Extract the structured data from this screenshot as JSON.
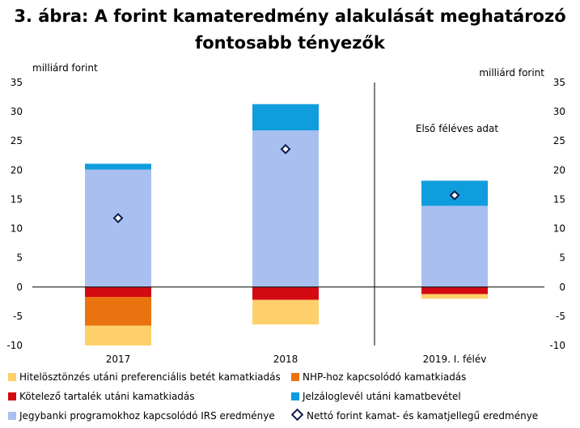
{
  "title": {
    "line1": "3. ábra: A forint kamateredmény alakulását meghatározó",
    "line2": "fontosabb tényezők"
  },
  "chart_data": {
    "type": "bar",
    "stacked": true,
    "categories": [
      "2017",
      "2018",
      "2019. I. félév"
    ],
    "ylabel_left": "milliárd forint",
    "ylabel_right": "milliárd forint",
    "ylim": [
      -10,
      35
    ],
    "yticks": [
      -10,
      -5,
      0,
      5,
      10,
      15,
      20,
      25,
      30,
      35
    ],
    "annotation": "Első féléves adat",
    "series": [
      {
        "name": "Kötelező tartalék utáni kamatkiadás",
        "color": "#d40a12",
        "values": [
          -1.7,
          -2.2,
          -1.2
        ]
      },
      {
        "name": "NHP-hoz kapcsolódó kamatkiadás",
        "color": "#e8730f",
        "values": [
          -4.9,
          0,
          0
        ]
      },
      {
        "name": "Hitelösztönzés utáni preferenciális betét kamatkiadás",
        "color": "#fdd06b",
        "values": [
          -3.4,
          -4.2,
          -0.8
        ]
      },
      {
        "name": "Jegybanki programokhoz kapcsolódó IRS eredménye",
        "color": "#a8bfef",
        "values": [
          20.1,
          26.8,
          13.9
        ]
      },
      {
        "name": "Jelzáloglevél utáni kamatbevétel",
        "color": "#109ddd",
        "values": [
          1.0,
          4.5,
          4.3
        ]
      }
    ],
    "net_series": {
      "name": "Nettó forint kamat- és kamatjellegű eredménye",
      "values": [
        11.8,
        23.6,
        15.7
      ]
    },
    "legend": [
      {
        "name": "Hitelösztönzés utáni preferenciális betét kamatkiadás",
        "color": "#fdd06b",
        "marker": "square"
      },
      {
        "name": "NHP-hoz kapcsolódó kamatkiadás",
        "color": "#e8730f",
        "marker": "square"
      },
      {
        "name": "Kötelező tartalék utáni kamatkiadás",
        "color": "#d40a12",
        "marker": "square"
      },
      {
        "name": "Jelzáloglevél utáni kamatbevétel",
        "color": "#109ddd",
        "marker": "square"
      },
      {
        "name": "Jegybanki programokhoz kapcsolódó IRS eredménye",
        "color": "#a8bfef",
        "marker": "square"
      },
      {
        "name": "Nettó forint kamat- és kamatjellegű eredménye",
        "color": "#0d1b4b",
        "marker": "diamond"
      }
    ]
  }
}
